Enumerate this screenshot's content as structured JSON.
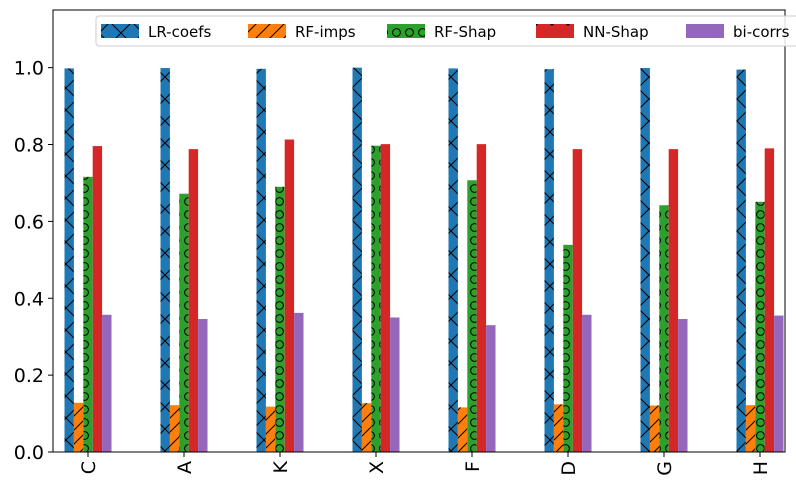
{
  "chart_data": {
    "type": "bar",
    "categories": [
      "C",
      "A",
      "K",
      "X",
      "F",
      "D",
      "G",
      "H"
    ],
    "ylim": [
      0,
      1.15
    ],
    "yticks": [
      "0.0",
      "0.2",
      "0.4",
      "0.6",
      "0.8",
      "1.0"
    ],
    "ytick_values": [
      0.0,
      0.2,
      0.4,
      0.6,
      0.8,
      1.0
    ],
    "legend_position": "top",
    "grid": false,
    "series": [
      {
        "name": "LR-coefs",
        "color": "#1f77b4",
        "hatch": "x",
        "values": [
          0.998,
          0.999,
          0.997,
          1.0,
          0.998,
          0.996,
          0.999,
          0.995
        ]
      },
      {
        "name": "RF-imps",
        "color": "#ff7f0e",
        "hatch": "/",
        "values": [
          0.128,
          0.122,
          0.118,
          0.127,
          0.116,
          0.124,
          0.121,
          0.122
        ]
      },
      {
        "name": "RF-Shap",
        "color": "#2ca02c",
        "hatch": "o",
        "values": [
          0.716,
          0.672,
          0.69,
          0.797,
          0.707,
          0.539,
          0.642,
          0.651
        ]
      },
      {
        "name": "NN-Shap",
        "color": "#d62728",
        "hatch": ".",
        "values": [
          0.796,
          0.788,
          0.813,
          0.801,
          0.801,
          0.788,
          0.788,
          0.79
        ]
      },
      {
        "name": "bi-corrs",
        "color": "#9467bd",
        "hatch": "",
        "values": [
          0.357,
          0.346,
          0.362,
          0.35,
          0.33,
          0.357,
          0.346,
          0.355
        ]
      }
    ]
  }
}
